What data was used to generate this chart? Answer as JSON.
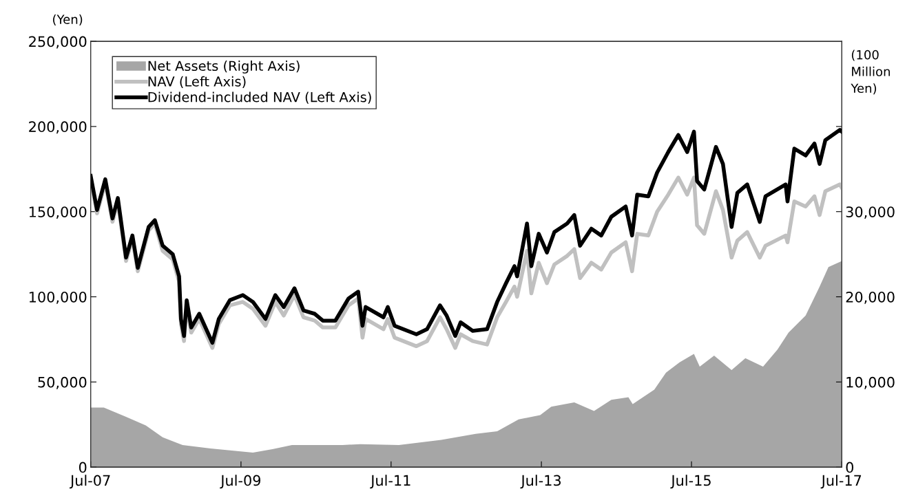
{
  "chart_data": {
    "type": "line",
    "ylabel": "(Yen)",
    "y2label": "(100 Million Yen)",
    "xlim": [
      "2007-07",
      "2017-07"
    ],
    "xticks": [
      {
        "value": "2007-07",
        "label": "Jul-07"
      },
      {
        "value": "2009-07",
        "label": "Jul-09"
      },
      {
        "value": "2011-07",
        "label": "Jul-11"
      },
      {
        "value": "2013-07",
        "label": "Jul-13"
      },
      {
        "value": "2015-07",
        "label": "Jul-15"
      },
      {
        "value": "2017-07",
        "label": "Jul-17"
      }
    ],
    "ylim": [
      0,
      250000
    ],
    "yticks": [
      0,
      {
        "value": 50000,
        "label": "50,000"
      },
      {
        "value": 100000,
        "label": "100,000"
      },
      {
        "value": 150000,
        "label": "150,000"
      },
      {
        "value": 200000,
        "label": "200,000"
      },
      {
        "value": 250000,
        "label": "250,000"
      }
    ],
    "y2lim": [
      0,
      50000
    ],
    "y2ticks": [
      0,
      {
        "value": 10000,
        "label": "10,000"
      },
      {
        "value": 20000,
        "label": "20,000"
      },
      {
        "value": 30000,
        "label": "30,000"
      },
      {
        "value": 40000,
        "label": null
      }
    ],
    "grid": false,
    "legend": "top left",
    "marker": "none",
    "line_style": "solid",
    "series": [
      {
        "name": "Net Assets (Right Axis)",
        "type": "area",
        "axis": "y2",
        "color": "#a6a6a6",
        "x": [
          "2007-07-01",
          "2007-09-03",
          "2007-12-20",
          "2008-03-25",
          "2008-06-15",
          "2008-09-20",
          "2009-02-03",
          "2009-08-28",
          "2009-12-01",
          "2010-03-06",
          "2010-11-08",
          "2011-02-01",
          "2011-08-08",
          "2012-03-01",
          "2012-08-15",
          "2012-11-28",
          "2013-03-12",
          "2013-06-25",
          "2013-08-18",
          "2013-12-08",
          "2014-03-14",
          "2014-06-06",
          "2014-08-28",
          "2014-09-18",
          "2015-01-01",
          "2015-02-27",
          "2015-05-04",
          "2015-07-13",
          "2015-08-10",
          "2015-10-19",
          "2016-01-12",
          "2016-03-19",
          "2016-06-13",
          "2016-08-22",
          "2016-10-15",
          "2017-01-06",
          "2017-03-15",
          "2017-04-27",
          "2017-07-01"
        ],
        "values": [
          7000,
          7000,
          5900,
          4900,
          3500,
          2600,
          2200,
          1700,
          2100,
          2600,
          2600,
          2700,
          2600,
          3200,
          3900,
          4200,
          5600,
          6100,
          7100,
          7600,
          6600,
          7900,
          8200,
          7400,
          9100,
          11100,
          12300,
          13300,
          11800,
          13100,
          11400,
          12800,
          11800,
          13800,
          15800,
          17800,
          21200,
          23500,
          24200
        ]
      },
      {
        "name": "NAV (Left Axis)",
        "color": "#c0c0c0",
        "x": [
          "2007-07-01",
          "2007-08-01",
          "2007-09-10",
          "2007-10-15",
          "2007-11-10",
          "2007-12-20",
          "2008-01-20",
          "2008-02-15",
          "2008-04-08",
          "2008-05-08",
          "2008-06-15",
          "2008-08-03",
          "2008-09-03",
          "2008-09-12",
          "2008-09-27",
          "2008-10-10",
          "2008-11-01",
          "2008-12-10",
          "2009-02-12",
          "2009-03-15",
          "2009-05-08",
          "2009-07-10",
          "2009-08-28",
          "2009-10-28",
          "2009-12-15",
          "2010-01-25",
          "2010-03-18",
          "2010-05-01",
          "2010-06-25",
          "2010-08-03",
          "2010-10-03",
          "2010-12-06",
          "2011-01-22",
          "2011-02-12",
          "2011-02-27",
          "2011-05-25",
          "2011-06-15",
          "2011-07-18",
          "2011-11-01",
          "2011-12-23",
          "2012-02-24",
          "2012-03-27",
          "2012-05-08",
          "2012-06-03",
          "2012-08-01",
          "2012-10-10",
          "2012-11-28",
          "2013-01-10",
          "2013-02-20",
          "2013-03-05",
          "2013-04-22",
          "2013-05-13",
          "2013-06-18",
          "2013-07-28",
          "2013-09-02",
          "2013-11-03",
          "2013-12-08",
          "2014-01-05",
          "2014-03-01",
          "2014-04-18",
          "2014-06-06",
          "2014-08-15",
          "2014-09-15",
          "2014-10-10",
          "2014-12-03",
          "2015-01-15",
          "2015-03-10",
          "2015-04-28",
          "2015-06-10",
          "2015-07-13",
          "2015-07-28",
          "2015-09-01",
          "2015-10-28",
          "2015-12-01",
          "2016-01-12",
          "2016-02-09",
          "2016-03-28",
          "2016-05-28",
          "2016-06-25",
          "2016-10-01",
          "2016-10-10",
          "2016-11-12",
          "2017-01-06",
          "2017-02-18",
          "2017-03-15",
          "2017-04-12",
          "2017-06-22",
          "2017-07-01"
        ],
        "values": [
          169000,
          149000,
          167000,
          144000,
          156000,
          121000,
          134000,
          115000,
          139000,
          143000,
          127000,
          122000,
          109000,
          84000,
          74000,
          95000,
          79000,
          87000,
          70000,
          84000,
          95000,
          97000,
          93000,
          83000,
          97000,
          89000,
          101000,
          88000,
          86000,
          82000,
          82000,
          95000,
          99000,
          76000,
          87000,
          81000,
          87000,
          76000,
          71000,
          74000,
          88000,
          81000,
          70000,
          78000,
          74000,
          72000,
          88000,
          97000,
          106000,
          100000,
          127000,
          102000,
          120000,
          108000,
          119000,
          124000,
          128000,
          111000,
          120000,
          116000,
          126000,
          132000,
          115000,
          137000,
          136000,
          150000,
          160000,
          170000,
          160000,
          170000,
          142000,
          137000,
          162000,
          151000,
          123000,
          133000,
          138000,
          123000,
          130000,
          136000,
          132000,
          156000,
          153000,
          159000,
          148000,
          162000,
          166000,
          164000
        ]
      },
      {
        "name": "Dividend-included NAV (Left Axis)",
        "color": "#000000",
        "x": [
          "2007-07-01",
          "2007-08-01",
          "2007-09-10",
          "2007-10-15",
          "2007-11-10",
          "2007-12-20",
          "2008-01-20",
          "2008-02-15",
          "2008-04-08",
          "2008-05-08",
          "2008-06-15",
          "2008-08-03",
          "2008-09-03",
          "2008-09-12",
          "2008-09-27",
          "2008-10-10",
          "2008-11-01",
          "2008-12-10",
          "2009-02-12",
          "2009-03-15",
          "2009-05-08",
          "2009-07-10",
          "2009-08-28",
          "2009-10-28",
          "2009-12-15",
          "2010-01-25",
          "2010-03-18",
          "2010-05-01",
          "2010-06-25",
          "2010-08-03",
          "2010-10-03",
          "2010-12-06",
          "2011-01-22",
          "2011-02-12",
          "2011-02-27",
          "2011-05-25",
          "2011-06-15",
          "2011-07-18",
          "2011-11-01",
          "2011-12-23",
          "2012-02-24",
          "2012-03-27",
          "2012-05-08",
          "2012-06-03",
          "2012-08-01",
          "2012-10-10",
          "2012-11-28",
          "2013-01-10",
          "2013-02-20",
          "2013-03-05",
          "2013-04-22",
          "2013-05-13",
          "2013-06-18",
          "2013-07-28",
          "2013-09-02",
          "2013-11-03",
          "2013-12-08",
          "2014-01-05",
          "2014-03-01",
          "2014-04-18",
          "2014-06-06",
          "2014-08-15",
          "2014-09-15",
          "2014-10-10",
          "2014-12-03",
          "2015-01-15",
          "2015-03-10",
          "2015-04-28",
          "2015-06-10",
          "2015-07-13",
          "2015-07-28",
          "2015-09-01",
          "2015-10-28",
          "2015-12-01",
          "2016-01-12",
          "2016-02-09",
          "2016-03-28",
          "2016-05-28",
          "2016-06-25",
          "2016-10-01",
          "2016-10-10",
          "2016-11-12",
          "2017-01-06",
          "2017-02-18",
          "2017-03-15",
          "2017-04-12",
          "2017-06-22",
          "2017-07-01"
        ],
        "values": [
          171000,
          151000,
          169000,
          146000,
          158000,
          123000,
          136000,
          117000,
          141000,
          145000,
          130000,
          125000,
          112000,
          87000,
          77000,
          98000,
          82000,
          90000,
          73000,
          87000,
          98000,
          101000,
          97000,
          87000,
          101000,
          94000,
          105000,
          92000,
          90000,
          86000,
          86000,
          99000,
          103000,
          83000,
          94000,
          88000,
          94000,
          83000,
          78000,
          81000,
          95000,
          89000,
          77000,
          85000,
          80000,
          81000,
          97000,
          108000,
          118000,
          112000,
          143000,
          118000,
          137000,
          126000,
          138000,
          143000,
          148000,
          130000,
          140000,
          136000,
          147000,
          153000,
          136000,
          160000,
          159000,
          173000,
          185000,
          195000,
          185000,
          197000,
          168000,
          163000,
          188000,
          178000,
          141000,
          161000,
          166000,
          144000,
          159000,
          166000,
          156000,
          187000,
          183000,
          190000,
          178000,
          192000,
          198000,
          197000
        ]
      }
    ]
  }
}
